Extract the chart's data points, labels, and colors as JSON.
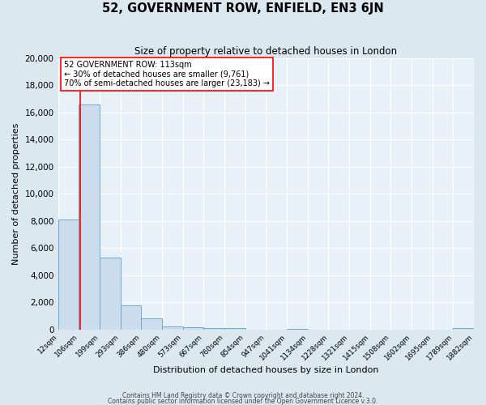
{
  "title": "52, GOVERNMENT ROW, ENFIELD, EN3 6JN",
  "subtitle": "Size of property relative to detached houses in London",
  "xlabel": "Distribution of detached houses by size in London",
  "ylabel": "Number of detached properties",
  "bar_color": "#ccdcec",
  "bar_edge_color": "#6aaad4",
  "background_color": "#dce8f0",
  "plot_bg_color": "#e8f0f8",
  "grid_color": "#ffffff",
  "red_line_x": 113,
  "annotation_title": "52 GOVERNMENT ROW: 113sqm",
  "annotation_line1": "← 30% of detached houses are smaller (9,761)",
  "annotation_line2": "70% of semi-detached houses are larger (23,183) →",
  "footer1": "Contains HM Land Registry data © Crown copyright and database right 2024.",
  "footer2": "Contains public sector information licensed under the Open Government Licence v.3.0.",
  "bin_edges": [
    12,
    106,
    199,
    293,
    386,
    480,
    573,
    667,
    760,
    854,
    947,
    1041,
    1134,
    1228,
    1321,
    1415,
    1508,
    1602,
    1695,
    1789,
    1882
  ],
  "bin_labels": [
    "12sqm",
    "106sqm",
    "199sqm",
    "293sqm",
    "386sqm",
    "480sqm",
    "573sqm",
    "667sqm",
    "760sqm",
    "854sqm",
    "947sqm",
    "1041sqm",
    "1134sqm",
    "1228sqm",
    "1321sqm",
    "1415sqm",
    "1508sqm",
    "1602sqm",
    "1695sqm",
    "1789sqm",
    "1882sqm"
  ],
  "counts": [
    8100,
    16600,
    5300,
    1750,
    800,
    250,
    150,
    100,
    75,
    0,
    0,
    60,
    0,
    0,
    0,
    0,
    0,
    0,
    0,
    130
  ],
  "ylim": [
    0,
    20000
  ],
  "yticks": [
    0,
    2000,
    4000,
    6000,
    8000,
    10000,
    12000,
    14000,
    16000,
    18000,
    20000
  ]
}
